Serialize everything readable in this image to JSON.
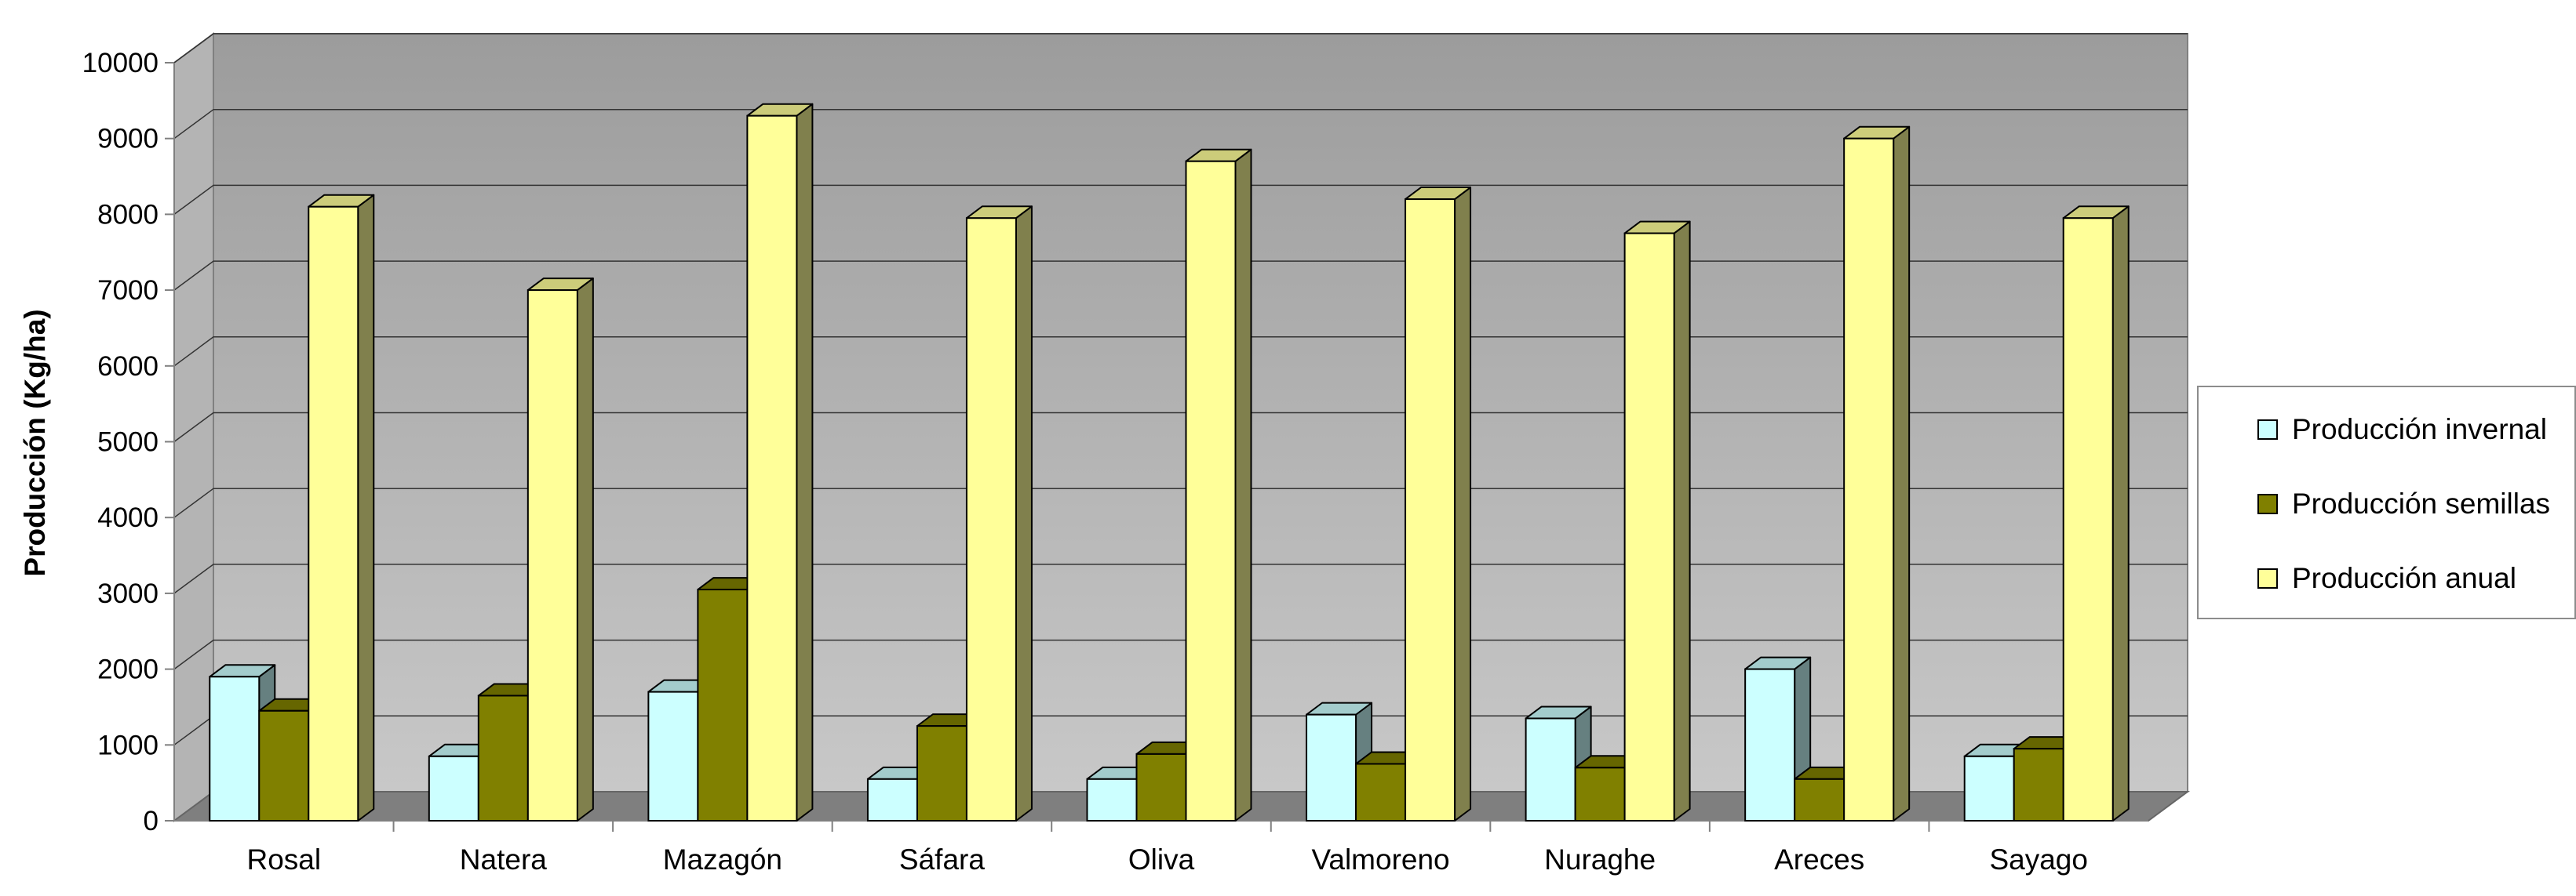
{
  "chart_data": {
    "type": "bar",
    "title": "",
    "xlabel": "",
    "ylabel": "Producción (Kg/ha)",
    "ylim": [
      0,
      10000
    ],
    "yticks": [
      "0",
      "1000",
      "2000",
      "3000",
      "4000",
      "5000",
      "6000",
      "7000",
      "8000",
      "9000",
      "10000"
    ],
    "grid": true,
    "legend_position": "right",
    "categories": [
      "Rosal",
      "Natera",
      "Mazagón",
      "Sáfara",
      "Oliva",
      "Valmoreno",
      "Nuraghe",
      "Areces",
      "Sayago"
    ],
    "series": [
      {
        "name": "Producción invernal",
        "color": "#ccffff",
        "values": [
          1900,
          850,
          1700,
          550,
          550,
          1400,
          1350,
          2000,
          850
        ]
      },
      {
        "name": "Producción semillas",
        "color": "#808000",
        "values": [
          1450,
          1650,
          3050,
          1250,
          880,
          750,
          700,
          550,
          950
        ]
      },
      {
        "name": "Producción anual",
        "color": "#ffff99",
        "values": [
          8100,
          7000,
          9300,
          7950,
          8700,
          8200,
          7750,
          9000,
          7950
        ]
      }
    ]
  }
}
